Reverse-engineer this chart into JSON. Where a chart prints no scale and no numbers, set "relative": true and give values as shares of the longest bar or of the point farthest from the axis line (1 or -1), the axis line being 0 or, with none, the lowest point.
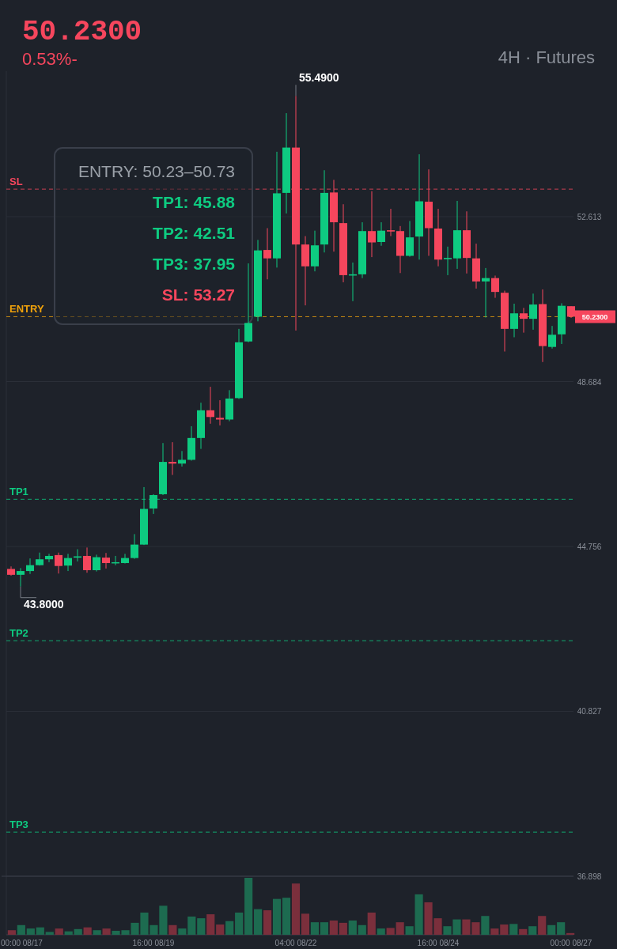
{
  "chart_data": [
    {
      "type": "candlestick",
      "title": "50.2300",
      "subtitle": "0.53%-",
      "x": [
        "--08-17T04:00",
        "--08-17T08:00",
        "--08-17T12:00",
        "--08-17T16:00",
        "--08-17T20:00",
        "--08-18T00:00",
        "--08-18T04:00",
        "--08-18T08:00",
        "--08-18T12:00",
        "--08-18T16:00",
        "--08-18T20:00",
        "--08-19T00:00",
        "--08-19T04:00",
        "--08-19T08:00",
        "--08-19T12:00",
        "--08-19T16:00",
        "--08-19T20:00",
        "--08-20T00:00",
        "--08-20T04:00",
        "--08-20T08:00",
        "--08-20T12:00",
        "--08-20T16:00",
        "--08-20T20:00",
        "--08-21T00:00",
        "--08-21T04:00",
        "--08-21T08:00",
        "--08-21T12:00",
        "--08-21T16:00",
        "--08-21T20:00",
        "--08-22T00:00",
        "--08-22T04:00",
        "--08-22T08:00",
        "--08-22T12:00",
        "--08-22T16:00",
        "--08-22T20:00",
        "--08-23T00:00",
        "--08-23T04:00",
        "--08-23T08:00",
        "--08-23T12:00",
        "--08-23T16:00",
        "--08-23T20:00",
        "--08-24T00:00",
        "--08-24T04:00",
        "--08-24T08:00",
        "--08-24T12:00",
        "--08-24T16:00",
        "--08-24T20:00",
        "--08-25T00:00",
        "--08-25T04:00",
        "--08-25T08:00",
        "--08-25T12:00",
        "--08-25T16:00",
        "--08-25T20:00",
        "--08-26T00:00",
        "--08-26T04:00",
        "--08-26T08:00",
        "--08-26T12:00",
        "--08-26T16:00",
        "--08-26T20:00",
        "--08-27T00:00"
      ],
      "ohlc": [
        [
          44.22,
          44.28,
          44.06,
          44.08
        ],
        [
          44.08,
          44.24,
          43.8,
          44.17
        ],
        [
          44.17,
          44.47,
          44.1,
          44.31
        ],
        [
          44.31,
          44.61,
          44.3,
          44.45
        ],
        [
          44.45,
          44.58,
          44.38,
          44.53
        ],
        [
          44.55,
          44.61,
          44.11,
          44.29
        ],
        [
          44.3,
          44.58,
          44.17,
          44.48
        ],
        [
          44.49,
          44.69,
          44.4,
          44.52
        ],
        [
          44.53,
          44.73,
          44.13,
          44.19
        ],
        [
          44.19,
          44.56,
          44.16,
          44.5
        ],
        [
          44.49,
          44.6,
          44.23,
          44.36
        ],
        [
          44.36,
          44.53,
          44.31,
          44.38
        ],
        [
          44.36,
          44.58,
          44.35,
          44.48
        ],
        [
          44.48,
          45.05,
          44.46,
          44.8
        ],
        [
          44.8,
          46.17,
          44.79,
          45.65
        ],
        [
          45.66,
          46.0,
          45.53,
          45.98
        ],
        [
          46.0,
          47.22,
          45.98,
          46.77
        ],
        [
          46.77,
          47.24,
          46.46,
          46.73
        ],
        [
          46.73,
          47.03,
          46.66,
          46.82
        ],
        [
          46.82,
          47.62,
          46.8,
          47.34
        ],
        [
          47.34,
          48.18,
          47.08,
          48.0
        ],
        [
          48.0,
          48.56,
          47.68,
          47.84
        ],
        [
          47.82,
          48.24,
          47.64,
          47.78
        ],
        [
          47.78,
          48.48,
          47.74,
          48.28
        ],
        [
          48.29,
          49.94,
          48.27,
          49.62
        ],
        [
          49.64,
          51.5,
          49.62,
          50.08
        ],
        [
          50.23,
          52.06,
          50.12,
          51.81
        ],
        [
          51.82,
          52.34,
          51.12,
          51.62
        ],
        [
          51.62,
          54.16,
          51.4,
          53.17
        ],
        [
          53.18,
          55.08,
          52.69,
          54.26
        ],
        [
          54.26,
          55.49,
          49.9,
          51.95
        ],
        [
          51.95,
          52.15,
          50.5,
          51.43
        ],
        [
          51.43,
          52.28,
          51.31,
          51.93
        ],
        [
          51.95,
          53.72,
          51.76,
          53.18
        ],
        [
          53.19,
          53.49,
          51.78,
          52.48
        ],
        [
          52.46,
          52.91,
          51.05,
          51.22
        ],
        [
          51.21,
          51.52,
          50.6,
          51.24
        ],
        [
          51.24,
          52.48,
          51.15,
          52.27
        ],
        [
          52.27,
          53.22,
          51.65,
          52.0
        ],
        [
          52.01,
          52.48,
          51.92,
          52.28
        ],
        [
          52.29,
          52.8,
          52.15,
          52.26
        ],
        [
          52.27,
          52.39,
          51.27,
          51.68
        ],
        [
          51.68,
          52.51,
          51.66,
          52.12
        ],
        [
          52.14,
          54.1,
          51.59,
          52.98
        ],
        [
          52.97,
          53.74,
          51.68,
          52.34
        ],
        [
          52.33,
          52.8,
          51.43,
          51.59
        ],
        [
          51.6,
          51.9,
          51.22,
          51.63
        ],
        [
          51.62,
          52.99,
          51.37,
          52.29
        ],
        [
          52.29,
          52.74,
          51.26,
          51.63
        ],
        [
          51.62,
          51.97,
          50.9,
          51.07
        ],
        [
          51.07,
          51.39,
          50.21,
          51.15
        ],
        [
          51.15,
          51.21,
          50.68,
          50.82
        ],
        [
          50.8,
          50.85,
          49.4,
          49.94
        ],
        [
          49.94,
          50.54,
          49.74,
          50.31
        ],
        [
          50.31,
          50.44,
          49.85,
          50.18
        ],
        [
          50.18,
          50.78,
          49.92,
          50.52
        ],
        [
          50.53,
          50.88,
          49.15,
          49.53
        ],
        [
          49.51,
          50.01,
          49.47,
          49.8
        ],
        [
          49.81,
          50.55,
          49.58,
          50.49
        ],
        [
          50.48,
          50.48,
          50.2,
          50.23
        ]
      ],
      "xlim": [
        "--08-17T00:00",
        "--08-27T01:00"
      ],
      "xticks": [
        {
          "value": "--08-17T00:00",
          "label": "00:00 08/17"
        },
        {
          "value": "--08-19T16:00",
          "label": "16:00 08/19"
        },
        {
          "value": "--08-22T04:00",
          "label": "04:00 08/22"
        },
        {
          "value": "--08-24T16:00",
          "label": "16:00 08/24"
        },
        {
          "value": "--08-27T00:00",
          "label": "00:00 08/27"
        }
      ],
      "ylim": [
        36.898,
        56.08
      ],
      "yticks": [
        36.898,
        40.827,
        44.756,
        48.684,
        52.613
      ],
      "grid": "y",
      "ref_lines": [
        {
          "axis": "y",
          "value": 53.27,
          "label": "SL",
          "color": "#f6465d",
          "line_style": "dashed"
        },
        {
          "axis": "y",
          "value": 50.23,
          "label": "ENTRY",
          "color": "#f0a20b",
          "line_style": "dashed"
        },
        {
          "axis": "y",
          "value": 45.88,
          "label": "TP1",
          "color": "#0ecb81",
          "line_style": "dashed"
        },
        {
          "axis": "y",
          "value": 42.51,
          "label": "TP2",
          "color": "#0ecb81",
          "line_style": "dashed"
        },
        {
          "axis": "y",
          "value": 37.95,
          "label": "TP3",
          "color": "#0ecb81",
          "line_style": "dashed"
        }
      ],
      "annotations": [
        "4H · Futures",
        "50.2300",
        "ENTRY: 50.23–50.73",
        "TP1: 45.88",
        "TP2: 42.51",
        "TP3: 37.95",
        "SL: 53.27",
        {
          "text": "55.4900",
          "x": "--08-22T04:00",
          "y": 55.49
        },
        {
          "text": "43.8000",
          "x": "--08-17T08:00",
          "y": 43.8
        }
      ]
    },
    {
      "type": "bar",
      "relative": true,
      "categories": [
        null,
        null,
        null,
        null,
        null,
        null,
        null,
        null,
        null,
        null,
        null,
        null,
        null,
        null,
        null,
        null,
        null,
        null,
        null,
        null,
        null,
        null,
        null,
        null,
        null,
        null,
        null,
        null,
        null,
        null,
        null,
        null,
        null,
        null,
        null,
        null,
        null,
        null,
        null,
        null,
        null,
        null,
        null,
        null,
        null,
        null,
        null,
        null,
        null,
        null,
        null,
        null,
        null,
        null,
        null,
        null,
        null,
        null,
        null,
        null
      ],
      "values": [
        0.08,
        0.17,
        0.11,
        0.13,
        0.05,
        0.11,
        0.06,
        0.1,
        0.13,
        0.08,
        0.11,
        0.07,
        0.08,
        0.21,
        0.39,
        0.17,
        0.51,
        0.17,
        0.11,
        0.32,
        0.29,
        0.36,
        0.18,
        0.24,
        0.39,
        1,
        0.45,
        0.43,
        0.63,
        0.65,
        0.9,
        0.37,
        0.22,
        0.22,
        0.25,
        0.21,
        0.25,
        0.17,
        0.39,
        0.11,
        0.12,
        0.22,
        0.15,
        0.71,
        0.57,
        0.29,
        0.15,
        0.27,
        0.27,
        0.22,
        0.33,
        0.11,
        0.18,
        0.19,
        0.1,
        0.15,
        0.33,
        0.17,
        0.22,
        0.03
      ],
      "colors": [
        "#7b2f3c",
        "#1d6b50",
        "#1d6b50",
        "#1d6b50",
        "#1d6b50",
        "#7b2f3c",
        "#1d6b50",
        "#1d6b50",
        "#7b2f3c",
        "#1d6b50",
        "#7b2f3c",
        "#1d6b50",
        "#1d6b50",
        "#1d6b50",
        "#1d6b50",
        "#1d6b50",
        "#1d6b50",
        "#7b2f3c",
        "#1d6b50",
        "#1d6b50",
        "#1d6b50",
        "#7b2f3c",
        "#7b2f3c",
        "#1d6b50",
        "#1d6b50",
        "#1d6b50",
        "#1d6b50",
        "#7b2f3c",
        "#1d6b50",
        "#1d6b50",
        "#7b2f3c",
        "#7b2f3c",
        "#1d6b50",
        "#1d6b50",
        "#7b2f3c",
        "#7b2f3c",
        "#1d6b50",
        "#1d6b50",
        "#7b2f3c",
        "#1d6b50",
        "#7b2f3c",
        "#7b2f3c",
        "#1d6b50",
        "#1d6b50",
        "#7b2f3c",
        "#7b2f3c",
        "#1d6b50",
        "#1d6b50",
        "#7b2f3c",
        "#7b2f3c",
        "#1d6b50",
        "#7b2f3c",
        "#7b2f3c",
        "#1d6b50",
        "#7b2f3c",
        "#1d6b50",
        "#7b2f3c",
        "#1d6b50",
        "#1d6b50",
        "#7b2f3c"
      ]
    }
  ]
}
